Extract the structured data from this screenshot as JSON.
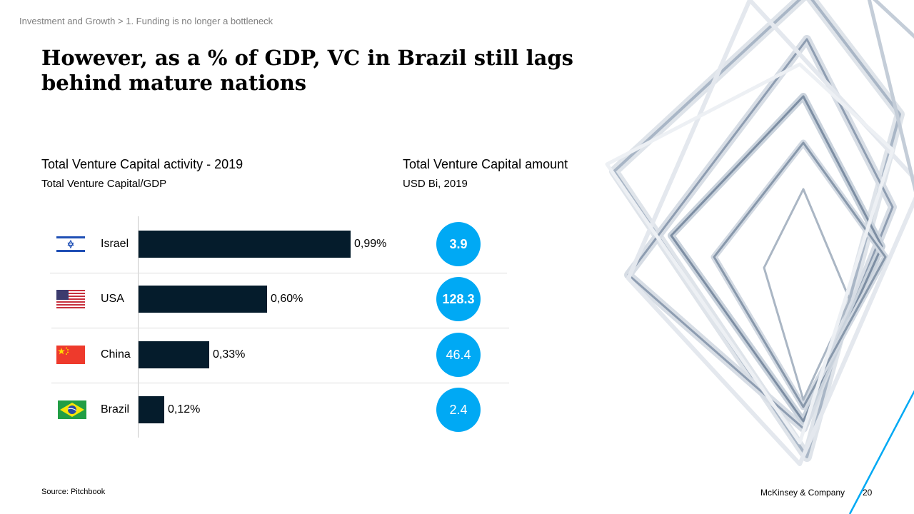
{
  "breadcrumb": "Investment and Growth > 1. Funding is no longer a bottleneck",
  "title": "However, as a % of GDP, VC in Brazil still lags behind mature nations",
  "chart_data": [
    {
      "type": "bar",
      "title": "Total Venture Capital activity - 2019",
      "subtitle": "Total Venture Capital/GDP",
      "categories": [
        "Israel",
        "USA",
        "China",
        "Brazil"
      ],
      "values": [
        0.99,
        0.6,
        0.33,
        0.12
      ],
      "value_labels": [
        "0,99%",
        "0,60%",
        "0,33%",
        "0,12%"
      ],
      "orientation": "horizontal",
      "bar_color": "#051c2c"
    },
    {
      "type": "table",
      "title": "Total Venture Capital amount",
      "subtitle": "USD Bi, 2019",
      "categories": [
        "Israel",
        "USA",
        "China",
        "Brazil"
      ],
      "values": [
        3.9,
        128.3,
        46.4,
        2.4
      ],
      "value_labels": [
        "3.9",
        "128.3",
        "46.4",
        "2.4"
      ],
      "marker_color": "#00a9f4"
    }
  ],
  "flags": [
    "israel-flag-icon",
    "usa-flag-icon",
    "china-flag-icon",
    "brazil-flag-icon"
  ],
  "footer": {
    "source": "Source: Pitchbook",
    "company": "McKinsey & Company",
    "page": "20"
  }
}
